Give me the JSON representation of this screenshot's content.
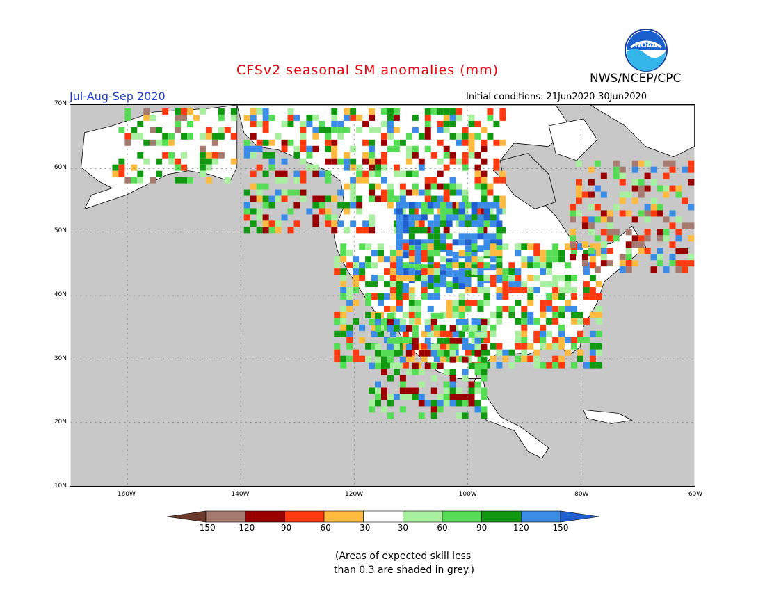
{
  "header": {
    "title": "CFSv2 seasonal SM anomalies (mm)",
    "agency": "NWS/NCEP/CPC",
    "season": "Jul-Aug-Sep 2020",
    "initial_conditions": "Initial conditions: 21Jun2020-30Jun2020",
    "logo_text": "NOAA"
  },
  "map": {
    "region": "North America",
    "lat_labels": [
      "70N",
      "60N",
      "50N",
      "40N",
      "30N",
      "20N",
      "10N"
    ],
    "lon_labels": [
      "160W",
      "140W",
      "120W",
      "100W",
      "80W",
      "60W"
    ],
    "lat_range": [
      10,
      70
    ],
    "lon_range": [
      -170,
      -60
    ],
    "grid": "dotted",
    "ocean_color": "#c8c8c8",
    "land_color": "#ffffff"
  },
  "colorbar": {
    "ticks": [
      "-150",
      "-120",
      "-90",
      "-60",
      "-30",
      "30",
      "60",
      "90",
      "120",
      "150"
    ],
    "colors": [
      "#6b3a2a",
      "#a77a70",
      "#9a0000",
      "#ff3a10",
      "#ffbb40",
      "#ffffff",
      "#a8f0a0",
      "#55dd55",
      "#119911",
      "#3a8ce6",
      "#1f5fd0"
    ]
  },
  "footnote": {
    "line1": "(Areas of expected skill less",
    "line2": "than 0.3 are shaded in grey.)"
  }
}
